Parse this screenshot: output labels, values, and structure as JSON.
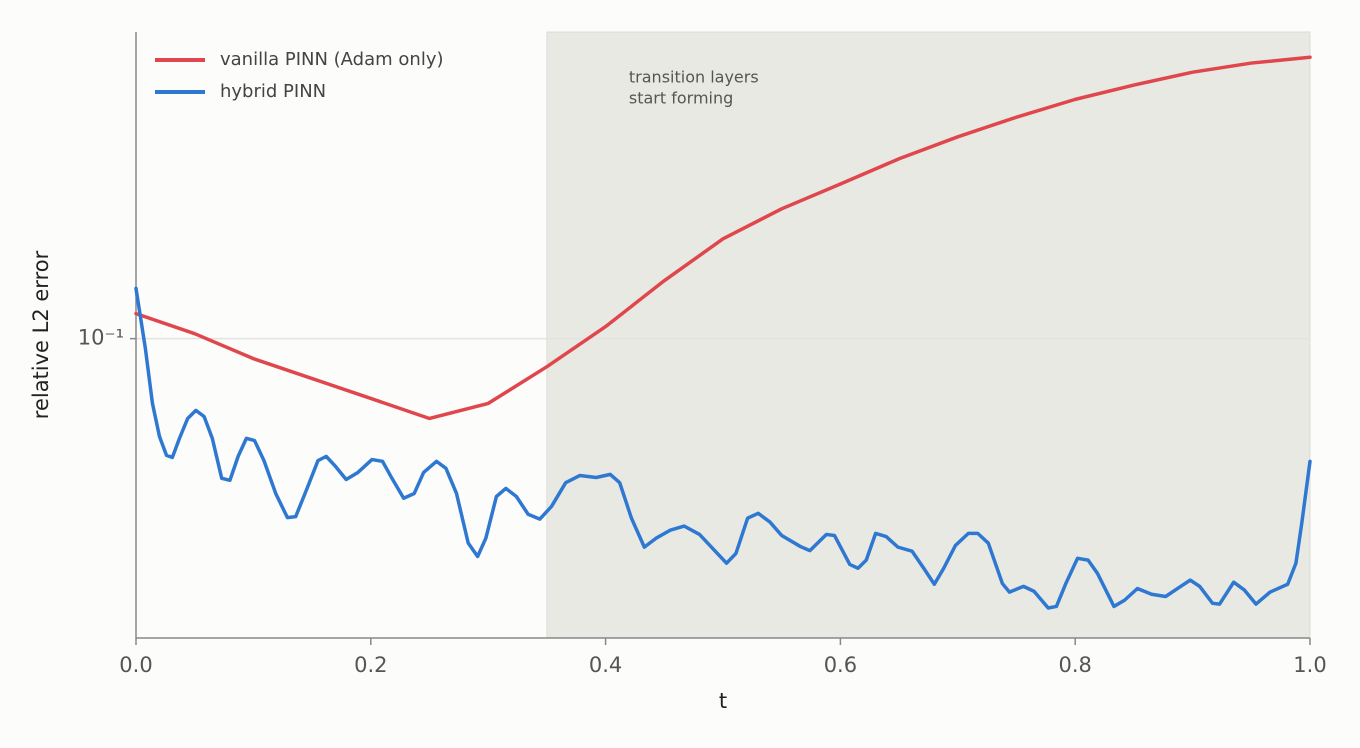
{
  "chart_data": {
    "type": "line",
    "xlabel": "t",
    "ylabel": "relative L2 error",
    "yscale": "log",
    "xlim": [
      0,
      1
    ],
    "ylim": [
      0.02,
      0.52
    ],
    "xticks": [
      {
        "value": 0,
        "label": "0.0"
      },
      0.2,
      0.4,
      0.6,
      0.8,
      {
        "value": 1,
        "label": "1.0"
      }
    ],
    "yticks": [
      {
        "value": 0.1,
        "label": "10⁻¹"
      }
    ],
    "grid": true,
    "legend": "upper left",
    "highlight": {
      "x": [
        0.35,
        1.0
      ],
      "color": "#e9e9e4",
      "label": [
        "transition layers",
        "start forming"
      ]
    },
    "series": [
      {
        "name": "vanilla PINN (Adam only)",
        "color": "#e0474c",
        "x": [
          0,
          0.05,
          0.1,
          0.15,
          0.2,
          0.25,
          0.3,
          0.35,
          0.4,
          0.45,
          0.5,
          0.55,
          0.6,
          0.65,
          0.7,
          0.75,
          0.8,
          0.85,
          0.9,
          0.95,
          1.0
        ],
        "values": [
          0.1144,
          0.1027,
          0.0898,
          0.0807,
          0.0725,
          0.0651,
          0.0706,
          0.086,
          0.1067,
          0.1366,
          0.171,
          0.201,
          0.2297,
          0.263,
          0.296,
          0.329,
          0.362,
          0.391,
          0.419,
          0.44,
          0.454
        ]
      },
      {
        "name": "hybrid PINN",
        "color": "#2f78d2",
        "x": [
          0,
          0.008,
          0.014,
          0.02,
          0.026,
          0.031,
          0.037,
          0.044,
          0.051,
          0.058,
          0.065,
          0.073,
          0.08,
          0.087,
          0.094,
          0.101,
          0.109,
          0.119,
          0.129,
          0.136,
          0.145,
          0.155,
          0.162,
          0.17,
          0.179,
          0.189,
          0.201,
          0.21,
          0.218,
          0.228,
          0.237,
          0.245,
          0.256,
          0.264,
          0.273,
          0.283,
          0.291,
          0.298,
          0.307,
          0.315,
          0.324,
          0.334,
          0.344,
          0.354,
          0.366,
          0.378,
          0.392,
          0.404,
          0.412,
          0.422,
          0.433,
          0.443,
          0.455,
          0.467,
          0.48,
          0.492,
          0.503,
          0.511,
          0.521,
          0.53,
          0.54,
          0.55,
          0.566,
          0.574,
          0.588,
          0.595,
          0.608,
          0.615,
          0.622,
          0.63,
          0.639,
          0.649,
          0.661,
          0.671,
          0.68,
          0.688,
          0.698,
          0.709,
          0.717,
          0.726,
          0.738,
          0.744,
          0.756,
          0.765,
          0.777,
          0.784,
          0.792,
          0.802,
          0.811,
          0.819,
          0.833,
          0.842,
          0.853,
          0.865,
          0.877,
          0.889,
          0.898,
          0.906,
          0.917,
          0.923,
          0.935,
          0.944,
          0.954,
          0.966,
          0.981,
          0.988,
          0.993,
          1.0
        ],
        "values": [
          0.131,
          0.0948,
          0.0706,
          0.0591,
          0.0534,
          0.0528,
          0.0585,
          0.0651,
          0.068,
          0.0658,
          0.0585,
          0.0472,
          0.0467,
          0.0531,
          0.0585,
          0.0578,
          0.0519,
          0.0435,
          0.0382,
          0.0384,
          0.0442,
          0.0519,
          0.0531,
          0.0503,
          0.0469,
          0.0487,
          0.0522,
          0.0517,
          0.0472,
          0.0424,
          0.0435,
          0.0487,
          0.0517,
          0.0498,
          0.0435,
          0.0333,
          0.031,
          0.0342,
          0.0428,
          0.0447,
          0.0428,
          0.0389,
          0.0379,
          0.0406,
          0.0461,
          0.0479,
          0.0474,
          0.0482,
          0.0461,
          0.0381,
          0.0326,
          0.0342,
          0.0357,
          0.0365,
          0.0349,
          0.0322,
          0.0299,
          0.0315,
          0.0381,
          0.0391,
          0.0373,
          0.0347,
          0.0327,
          0.032,
          0.0349,
          0.0347,
          0.0297,
          0.0291,
          0.0304,
          0.0351,
          0.0345,
          0.0326,
          0.0319,
          0.0291,
          0.0267,
          0.0291,
          0.0329,
          0.0351,
          0.0351,
          0.0333,
          0.0268,
          0.0256,
          0.0264,
          0.0257,
          0.0235,
          0.0237,
          0.0268,
          0.0307,
          0.0304,
          0.0283,
          0.0237,
          0.0245,
          0.0261,
          0.0253,
          0.025,
          0.0263,
          0.0273,
          0.0264,
          0.0241,
          0.024,
          0.027,
          0.0259,
          0.024,
          0.0256,
          0.0267,
          0.0299,
          0.0371,
          0.0517
        ]
      }
    ]
  }
}
